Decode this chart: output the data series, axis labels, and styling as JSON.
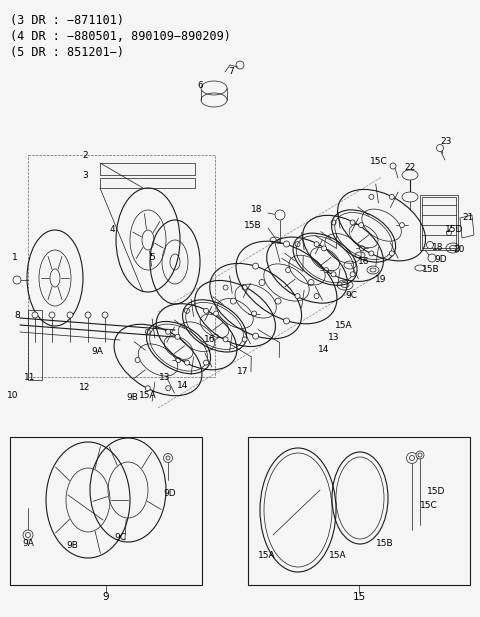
{
  "bg_color": "#f5f5f5",
  "line_color": "#1a1a1a",
  "header_lines": [
    "(3 DR : −871101)",
    "(4 DR : −880501, 890109−890209)",
    "(5 DR : 851201−)"
  ],
  "figsize": [
    4.8,
    6.17
  ],
  "dpi": 100
}
